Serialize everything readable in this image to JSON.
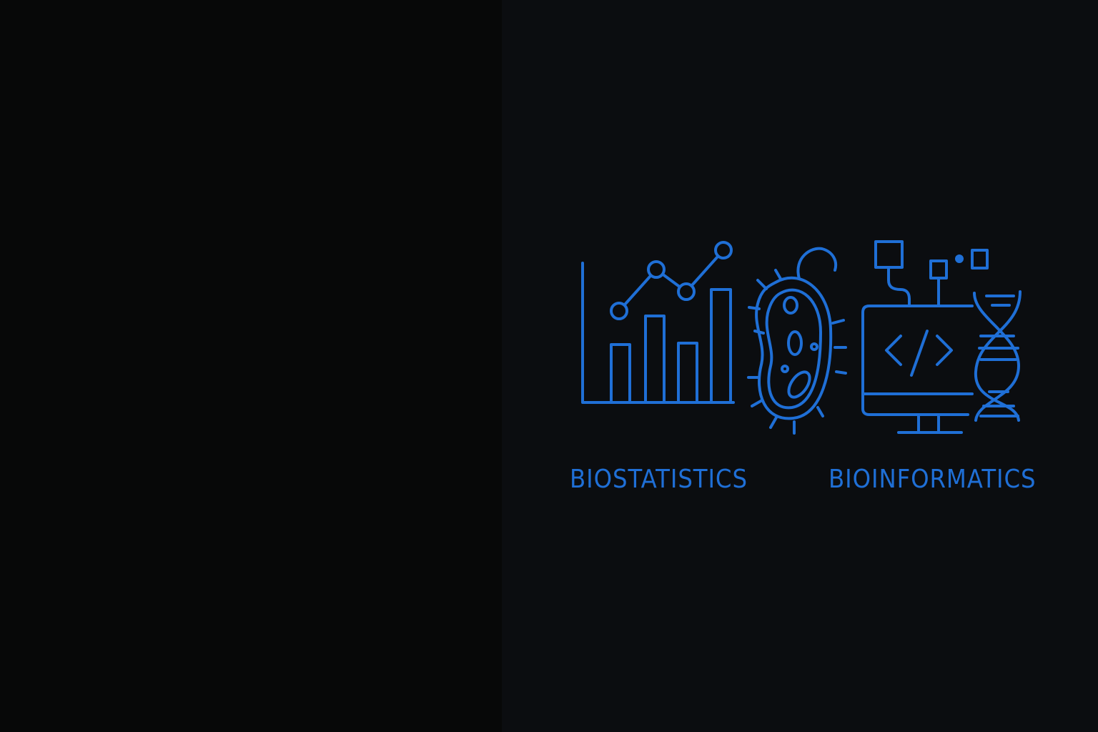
{
  "accent": "#1f6fd6",
  "panels": {
    "left_color": "#070808",
    "right_color": "#0b0d10"
  },
  "icons": [
    "bar-line-chart-icon",
    "bacterium-icon",
    "computer-code-icon",
    "network-nodes-icon",
    "dna-helix-icon"
  ],
  "labels": {
    "left": "BIOSTATISTICS",
    "right": "BIOINFORMATICS"
  }
}
